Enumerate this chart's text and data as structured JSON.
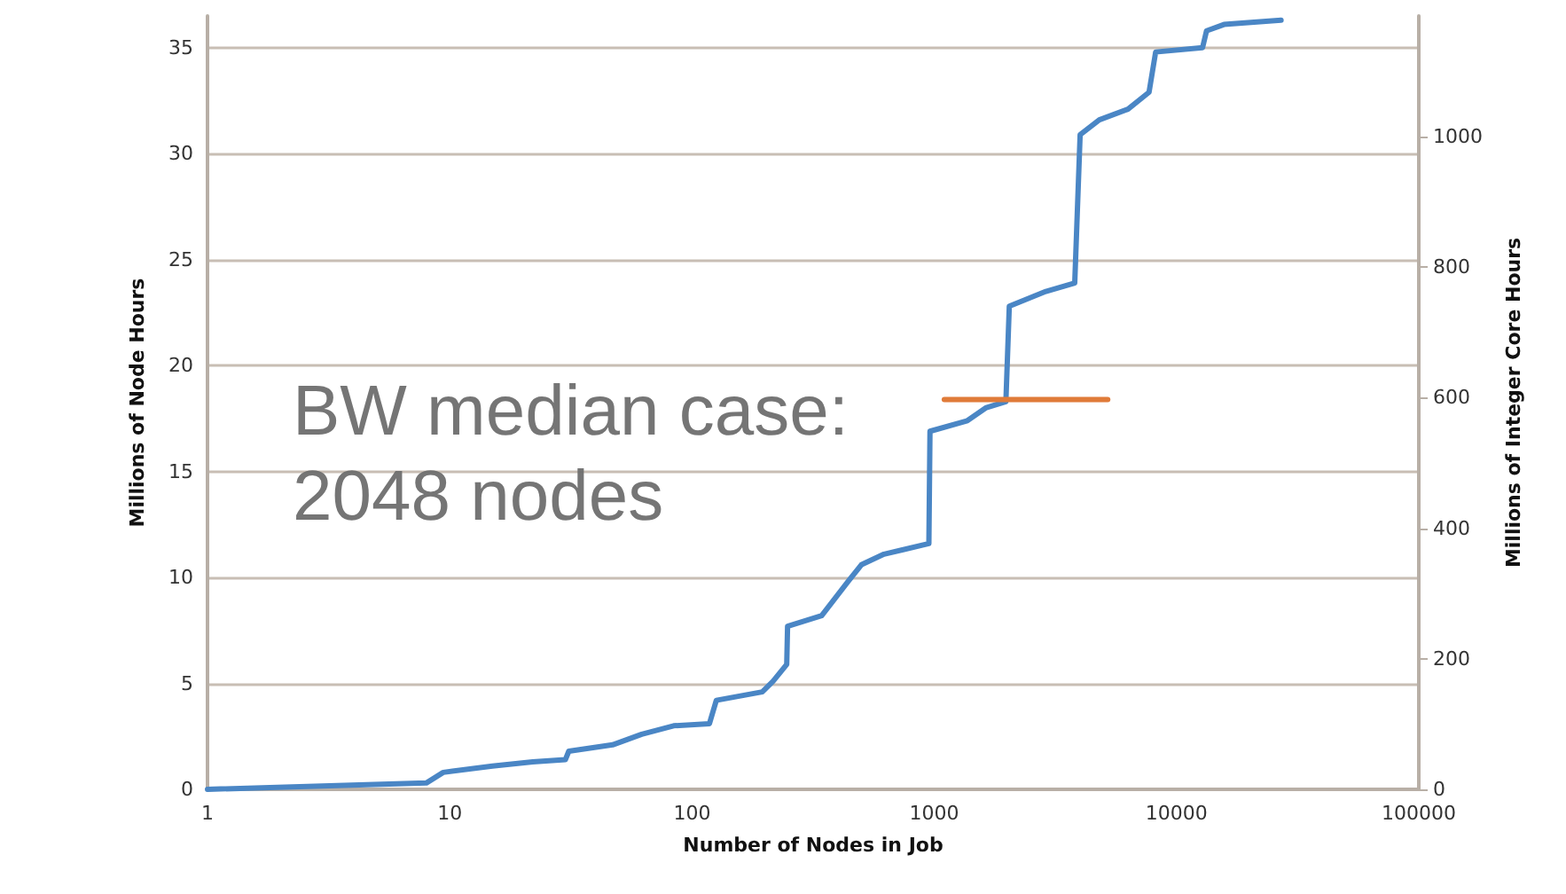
{
  "chart_data": {
    "type": "line",
    "xlabel": "Number of Nodes in Job",
    "ylabel": "Millions of Node Hours",
    "y2label": "Millions of Integer Core Hours",
    "annotations": [
      "BW median case:\n2048 nodes"
    ],
    "series": [
      {
        "color": "#4a86c5",
        "x": [
          1,
          8,
          9.4,
          15,
          22,
          30,
          31,
          47,
          62,
          84,
          118,
          126,
          195,
          216,
          246,
          248,
          343,
          440,
          500,
          620,
          950,
          960,
          1370,
          1630,
          1975,
          2040,
          2890,
          3800,
          4000,
          4800,
          6300,
          7700,
          8200,
          12800,
          13300,
          15700,
          27000
        ],
        "values": [
          0,
          0.3,
          0.8,
          1.1,
          1.3,
          1.4,
          1.8,
          2.1,
          2.6,
          3.0,
          3.1,
          4.2,
          4.6,
          5.1,
          5.9,
          7.7,
          8.2,
          9.8,
          10.6,
          11.1,
          11.6,
          16.9,
          17.4,
          18.0,
          18.3,
          22.8,
          23.5,
          23.9,
          30.9,
          31.6,
          32.1,
          32.9,
          34.8,
          35.0,
          35.8,
          36.1,
          36.3
        ]
      },
      {
        "color": "#e07b39",
        "x": [
          1100,
          5200
        ],
        "values": [
          18.4,
          18.4
        ]
      }
    ],
    "xlim": [
      1,
      100000
    ],
    "xticks": [
      1,
      10,
      100,
      1000,
      10000,
      100000
    ],
    "ylim": [
      0,
      36.5
    ],
    "yticks": [
      0,
      5,
      10,
      15,
      20,
      25,
      30,
      35
    ],
    "y2lim": [
      0,
      1185
    ],
    "y2ticks": [
      0,
      200,
      400,
      600,
      800,
      1000
    ],
    "log": "x",
    "grid": "y",
    "marker": "none",
    "line_style": "solid"
  }
}
